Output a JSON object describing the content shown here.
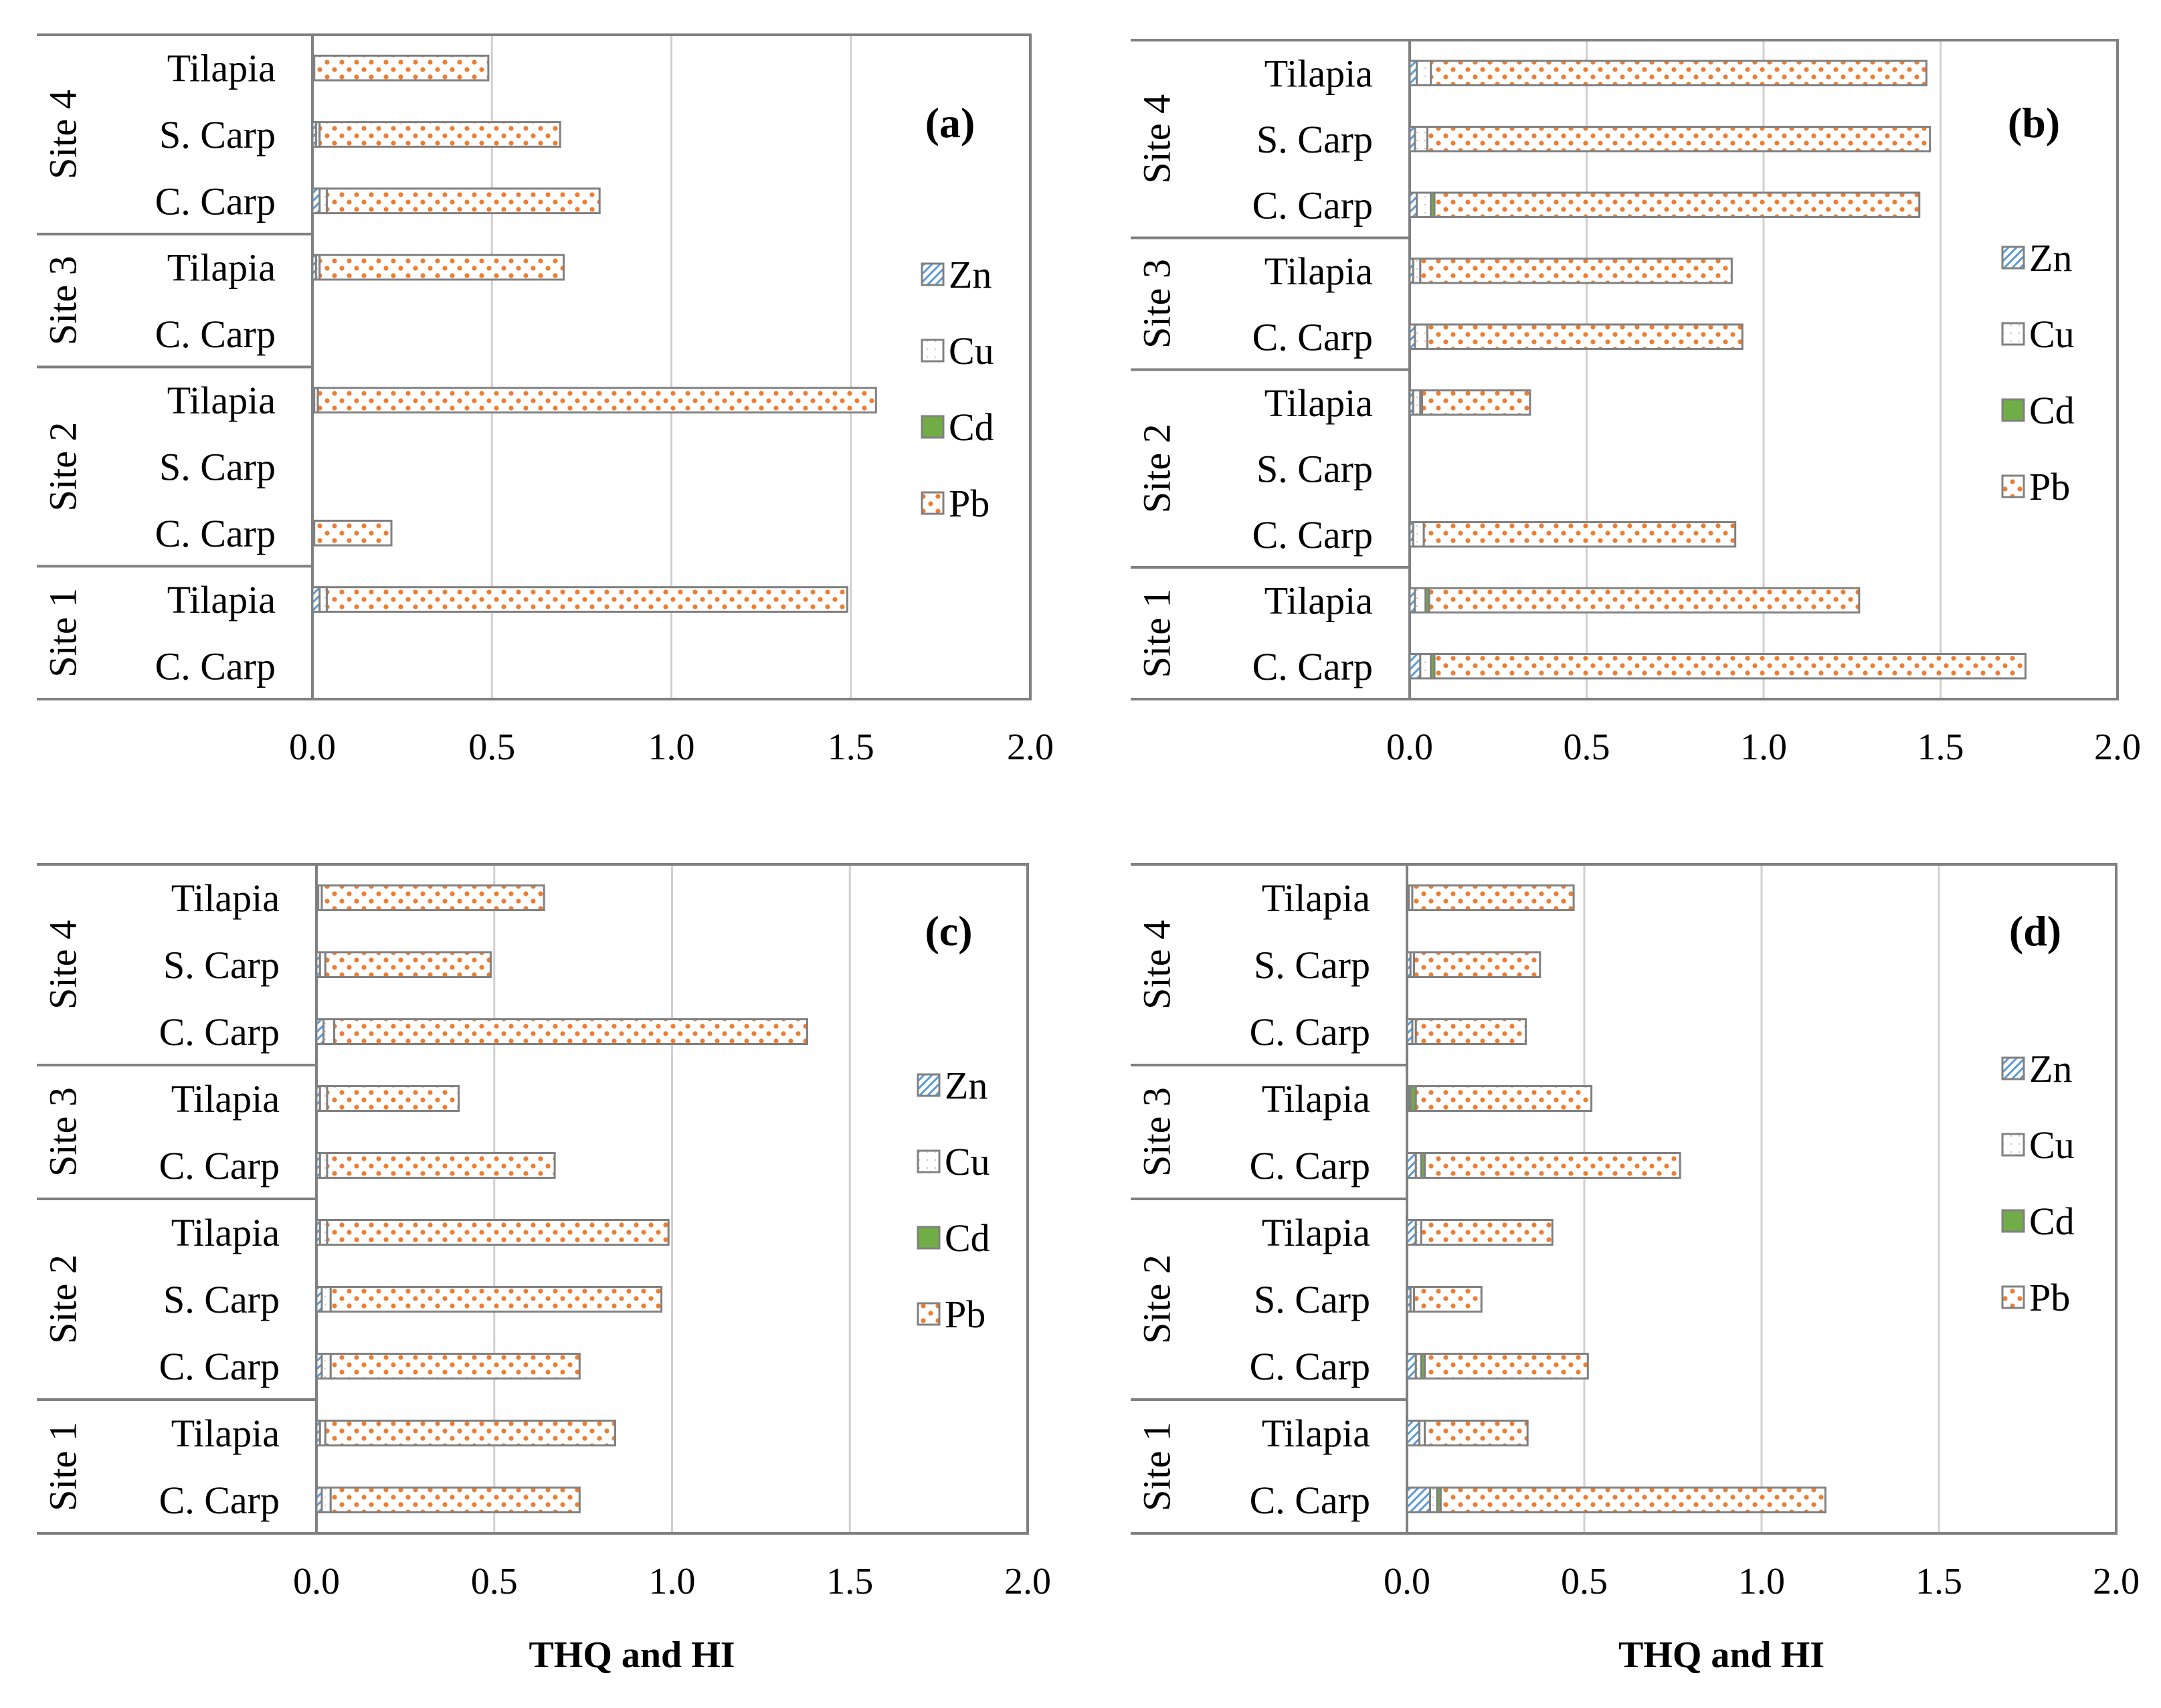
{
  "colors": {
    "Zn": "#5B9BD5",
    "Cu": "#A6A6A6",
    "Cd": "#70AD47",
    "Pb": "#ED7D31",
    "bar_outline": "#808080",
    "frame": "#808080",
    "grid": "#D0D0D0"
  },
  "series_names": [
    "Zn",
    "Cu",
    "Cd",
    "Pb"
  ],
  "axis_title": "THQ and HI",
  "chart_data": [
    {
      "type": "bar",
      "orientation": "horizontal",
      "stacked": true,
      "panel_label": "(a)",
      "xlim": [
        0,
        2
      ],
      "x_ticks": [
        "0.0",
        "0.5",
        "1.0",
        "1.5",
        "2.0"
      ],
      "xlabel": "",
      "grid": true,
      "legend_position": "right",
      "groups": [
        {
          "label": "Site 4",
          "categories": [
            "Tilapia",
            "S. Carp",
            "C. Carp"
          ]
        },
        {
          "label": "Site 3",
          "categories": [
            "Tilapia",
            "C. Carp"
          ]
        },
        {
          "label": "Site 2",
          "categories": [
            "Tilapia",
            "S. Carp",
            "C. Carp"
          ]
        },
        {
          "label": "Site 1",
          "categories": [
            "Tilapia",
            "C. Carp"
          ]
        }
      ],
      "series": [
        {
          "name": "Zn",
          "values": [
            0.0,
            0.01,
            0.02,
            0.01,
            0,
            0.005,
            0,
            0,
            0.02,
            0
          ]
        },
        {
          "name": "Cu",
          "values": [
            0.005,
            0.01,
            0.02,
            0.01,
            0,
            0.01,
            0,
            0.005,
            0.02,
            0
          ]
        },
        {
          "name": "Cd",
          "values": [
            0,
            0,
            0,
            0,
            0,
            0,
            0,
            0,
            0,
            0
          ]
        },
        {
          "name": "Pb",
          "values": [
            0.485,
            0.67,
            0.76,
            0.68,
            0,
            1.555,
            0,
            0.215,
            1.45,
            0
          ]
        }
      ]
    },
    {
      "type": "bar",
      "orientation": "horizontal",
      "stacked": true,
      "panel_label": "(b)",
      "xlim": [
        0,
        2
      ],
      "x_ticks": [
        "0.0",
        "0.5",
        "1.0",
        "1.5",
        "2.0"
      ],
      "xlabel": "",
      "grid": true,
      "legend_position": "right",
      "groups": [
        {
          "label": "Site 4",
          "categories": [
            "Tilapia",
            "S. Carp",
            "C. Carp"
          ]
        },
        {
          "label": "Site 3",
          "categories": [
            "Tilapia",
            "C. Carp"
          ]
        },
        {
          "label": "Site 2",
          "categories": [
            "Tilapia",
            "S. Carp",
            "C. Carp"
          ]
        },
        {
          "label": "Site 1",
          "categories": [
            "Tilapia",
            "C. Carp"
          ]
        }
      ],
      "series": [
        {
          "name": "Zn",
          "values": [
            0.02,
            0.015,
            0.02,
            0.01,
            0.015,
            0.01,
            0,
            0.01,
            0.015,
            0.03
          ]
        },
        {
          "name": "Cu",
          "values": [
            0.04,
            0.035,
            0.04,
            0.02,
            0.035,
            0.02,
            0,
            0.03,
            0.03,
            0.03
          ]
        },
        {
          "name": "Cd",
          "values": [
            0,
            0,
            0.01,
            0,
            0,
            0.005,
            0,
            0,
            0.01,
            0.01
          ]
        },
        {
          "name": "Pb",
          "values": [
            1.4,
            1.42,
            1.37,
            0.88,
            0.89,
            0.305,
            0,
            0.88,
            1.215,
            1.67
          ]
        }
      ]
    },
    {
      "type": "bar",
      "orientation": "horizontal",
      "stacked": true,
      "panel_label": "(c)",
      "xlim": [
        0,
        2
      ],
      "x_ticks": [
        "0.0",
        "0.5",
        "1.0",
        "1.5",
        "2.0"
      ],
      "xlabel": "THQ and HI",
      "grid": true,
      "legend_position": "right",
      "groups": [
        {
          "label": "Site 4",
          "categories": [
            "Tilapia",
            "S. Carp",
            "C. Carp"
          ]
        },
        {
          "label": "Site 3",
          "categories": [
            "Tilapia",
            "C. Carp"
          ]
        },
        {
          "label": "Site 2",
          "categories": [
            "Tilapia",
            "S. Carp",
            "C. Carp"
          ]
        },
        {
          "label": "Site 1",
          "categories": [
            "Tilapia",
            "C. Carp"
          ]
        }
      ],
      "series": [
        {
          "name": "Zn",
          "values": [
            0.005,
            0.01,
            0.02,
            0.01,
            0.01,
            0.01,
            0.015,
            0.015,
            0.01,
            0.015
          ]
        },
        {
          "name": "Cu",
          "values": [
            0.01,
            0.015,
            0.03,
            0.02,
            0.02,
            0.02,
            0.025,
            0.025,
            0.015,
            0.025
          ]
        },
        {
          "name": "Cd",
          "values": [
            0,
            0,
            0,
            0,
            0,
            0,
            0,
            0,
            0,
            0
          ]
        },
        {
          "name": "Pb",
          "values": [
            0.625,
            0.465,
            1.33,
            0.37,
            0.64,
            0.96,
            0.93,
            0.7,
            0.815,
            0.7
          ]
        }
      ]
    },
    {
      "type": "bar",
      "orientation": "horizontal",
      "stacked": true,
      "panel_label": "(d)",
      "xlim": [
        0,
        2
      ],
      "x_ticks": [
        "0.0",
        "0.5",
        "1.0",
        "1.5",
        "2.0"
      ],
      "xlabel": "THQ and HI",
      "grid": true,
      "legend_position": "right",
      "groups": [
        {
          "label": "Site 4",
          "categories": [
            "Tilapia",
            "S. Carp",
            "C. Carp"
          ]
        },
        {
          "label": "Site 3",
          "categories": [
            "Tilapia",
            "C. Carp"
          ]
        },
        {
          "label": "Site 2",
          "categories": [
            "Tilapia",
            "S. Carp",
            "C. Carp"
          ]
        },
        {
          "label": "Site 1",
          "categories": [
            "Tilapia",
            "C. Carp"
          ]
        }
      ],
      "series": [
        {
          "name": "Zn",
          "values": [
            0.005,
            0.01,
            0.015,
            0.005,
            0.025,
            0.025,
            0.01,
            0.025,
            0.035,
            0.065
          ]
        },
        {
          "name": "Cu",
          "values": [
            0.01,
            0.01,
            0.01,
            0.005,
            0.015,
            0.015,
            0.01,
            0.015,
            0.015,
            0.02
          ]
        },
        {
          "name": "Cd",
          "values": [
            0,
            0,
            0,
            0.015,
            0.01,
            0,
            0,
            0.01,
            0,
            0.01
          ]
        },
        {
          "name": "Pb",
          "values": [
            0.455,
            0.355,
            0.31,
            0.495,
            0.72,
            0.37,
            0.19,
            0.46,
            0.29,
            1.085
          ]
        }
      ]
    }
  ]
}
